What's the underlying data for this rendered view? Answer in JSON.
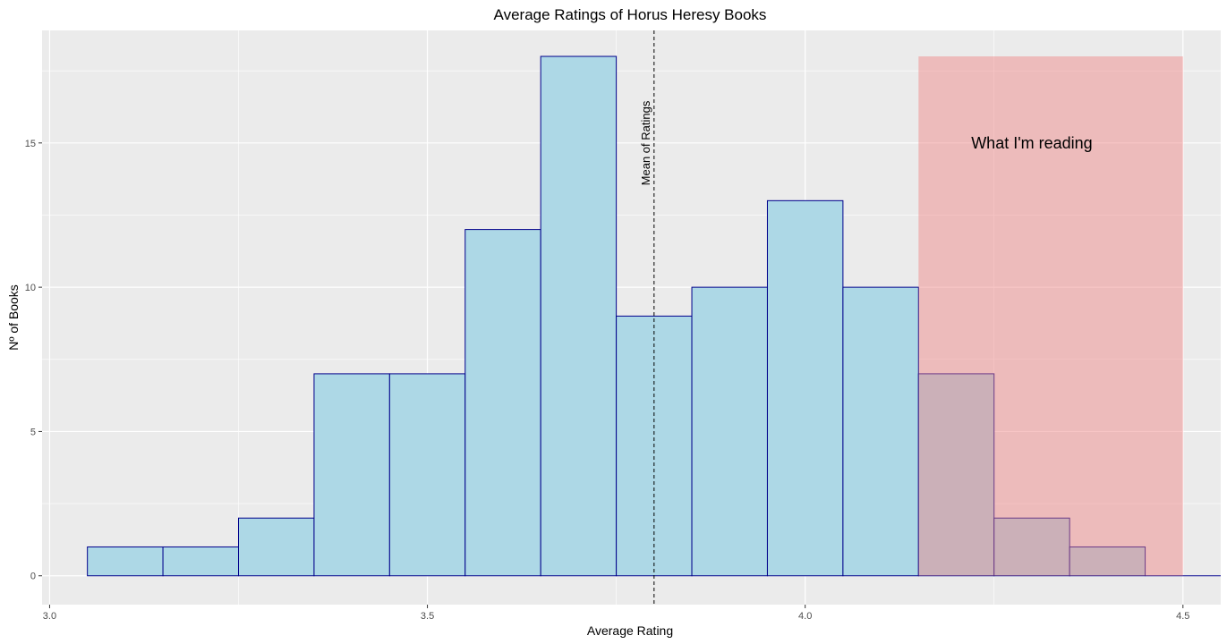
{
  "chart_data": {
    "type": "bar",
    "title": "Average Ratings of Horus Heresy Books",
    "xlabel": "Average Rating",
    "ylabel": "Nº of Books",
    "xlim": [
      2.99,
      4.55
    ],
    "ylim": [
      -1.0,
      18.9
    ],
    "x_ticks": [
      3.0,
      3.5,
      4.0,
      4.5
    ],
    "x_tick_labels": [
      "3.0",
      "3.5",
      "4.0",
      "4.5"
    ],
    "y_ticks": [
      0,
      5,
      10,
      15
    ],
    "y_tick_labels": [
      "0",
      "5",
      "10",
      "15"
    ],
    "grid": true,
    "bins": [
      {
        "x0": 3.05,
        "x1": 3.15,
        "count": 1
      },
      {
        "x0": 3.15,
        "x1": 3.25,
        "count": 1
      },
      {
        "x0": 3.25,
        "x1": 3.35,
        "count": 2
      },
      {
        "x0": 3.35,
        "x1": 3.45,
        "count": 7
      },
      {
        "x0": 3.45,
        "x1": 3.55,
        "count": 7
      },
      {
        "x0": 3.55,
        "x1": 3.65,
        "count": 12
      },
      {
        "x0": 3.65,
        "x1": 3.75,
        "count": 18
      },
      {
        "x0": 3.75,
        "x1": 3.85,
        "count": 9
      },
      {
        "x0": 3.85,
        "x1": 3.95,
        "count": 10
      },
      {
        "x0": 3.95,
        "x1": 4.05,
        "count": 13
      },
      {
        "x0": 4.05,
        "x1": 4.15,
        "count": 10
      },
      {
        "x0": 4.15,
        "x1": 4.25,
        "count": 7
      },
      {
        "x0": 4.25,
        "x1": 4.35,
        "count": 2
      },
      {
        "x0": 4.35,
        "x1": 4.45,
        "count": 1
      },
      {
        "x0": 4.45,
        "x1": 4.55,
        "count": 0
      }
    ],
    "mean_line": {
      "x": 3.8,
      "label": "Mean of Ratings"
    },
    "highlight_region": {
      "x0": 4.15,
      "x1": 4.5,
      "y0": 0,
      "y1": 18,
      "label": "What I'm reading",
      "label_x": 4.3,
      "label_y": 15
    },
    "colors": {
      "bar_fill": "#add8e6",
      "bar_stroke": "#00008b",
      "highlight_fill": "#f08080",
      "highlight_opacity": 0.45,
      "panel_bg": "#ebebeb",
      "grid_major": "#ffffff"
    }
  }
}
